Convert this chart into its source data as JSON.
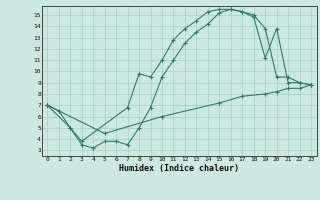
{
  "title": "",
  "xlabel": "Humidex (Indice chaleur)",
  "xlim": [
    -0.5,
    23.5
  ],
  "ylim": [
    2.5,
    15.8
  ],
  "xticks": [
    0,
    1,
    2,
    3,
    4,
    5,
    6,
    7,
    8,
    9,
    10,
    11,
    12,
    13,
    14,
    15,
    16,
    17,
    18,
    19,
    20,
    21,
    22,
    23
  ],
  "yticks": [
    3,
    4,
    5,
    6,
    7,
    8,
    9,
    10,
    11,
    12,
    13,
    14,
    15
  ],
  "bg_color": "#cce9e1",
  "grid_color": "#aad4ca",
  "line_color": "#2d7d6e",
  "series": [
    {
      "x": [
        0,
        1,
        2,
        3,
        4,
        5,
        6,
        7,
        8,
        9,
        10,
        11,
        12,
        13,
        14,
        15,
        16,
        17,
        18,
        19,
        20,
        21,
        22,
        23
      ],
      "y": [
        7.0,
        6.5,
        5.0,
        3.5,
        3.2,
        3.8,
        3.8,
        3.5,
        5.0,
        6.8,
        9.5,
        11.0,
        12.5,
        13.5,
        14.2,
        15.2,
        15.5,
        15.3,
        15.0,
        13.8,
        9.5,
        9.5,
        9.0,
        8.8
      ]
    },
    {
      "x": [
        0,
        2,
        3,
        7,
        8,
        9,
        10,
        11,
        12,
        13,
        14,
        15,
        16,
        17,
        18,
        19,
        20,
        21,
        22,
        23
      ],
      "y": [
        7.0,
        5.0,
        3.8,
        6.8,
        9.8,
        9.5,
        11.0,
        12.8,
        13.8,
        14.5,
        15.3,
        15.5,
        15.5,
        15.3,
        14.8,
        11.2,
        13.8,
        9.0,
        9.0,
        8.8
      ]
    },
    {
      "x": [
        0,
        5,
        10,
        15,
        17,
        19,
        20,
        21,
        22,
        23
      ],
      "y": [
        7.0,
        4.5,
        6.0,
        7.2,
        7.8,
        8.0,
        8.2,
        8.5,
        8.5,
        8.8
      ]
    }
  ]
}
